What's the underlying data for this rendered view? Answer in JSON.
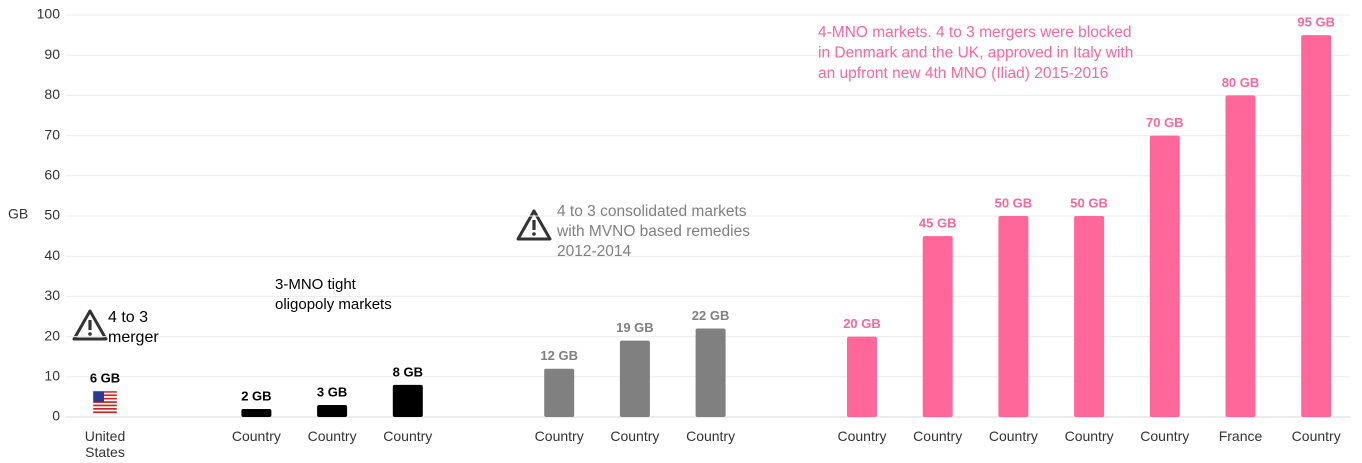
{
  "chart_data": {
    "type": "bar",
    "y_label": "GB",
    "categories": [
      "United States",
      null,
      "Country",
      "Country",
      "Country",
      null,
      "Country",
      "Country",
      "Country",
      null,
      "Country",
      "Country",
      "Country",
      "Country",
      "Country",
      "France",
      "Country"
    ],
    "values": [
      6,
      null,
      2,
      3,
      8,
      null,
      12,
      19,
      22,
      null,
      20,
      45,
      50,
      50,
      70,
      80,
      95
    ],
    "value_labels": [
      "6 GB",
      null,
      "2 GB",
      "3 GB",
      "8 GB",
      null,
      "12 GB",
      "19 GB",
      "22 GB",
      null,
      "20 GB",
      "45 GB",
      "50 GB",
      "50 GB",
      "70 GB",
      "80 GB",
      "95 GB"
    ],
    "colors": [
      "#000000",
      null,
      "#000000",
      "#000000",
      "#000000",
      null,
      "#808080",
      "#808080",
      "#808080",
      null,
      "#ff6699",
      "#ff6699",
      "#ff6699",
      "#ff6699",
      "#ff6699",
      "#ff6699",
      "#ff6699"
    ],
    "ylim": [
      0,
      100
    ],
    "yticks": [
      0,
      10,
      20,
      30,
      40,
      50,
      60,
      70,
      80,
      90,
      100
    ],
    "grid": true,
    "annotations": [
      {
        "lines": [
          "4 to 3",
          "merger"
        ],
        "color": "#000000"
      },
      {
        "lines": [
          "3-MNO tight",
          "oligopoly markets"
        ],
        "color": "#000000"
      },
      {
        "lines": [
          "4 to 3 consolidated markets",
          "with MVNO based remedies",
          "2012-2014"
        ],
        "color": "#808080"
      },
      {
        "lines": [
          "4-MNO markets. 4 to 3 mergers were blocked",
          "in Denmark and the UK, approved in Italy with",
          "an upfront new 4th MNO (Iliad) 2015-2016"
        ],
        "color": "#ff6699"
      }
    ]
  }
}
